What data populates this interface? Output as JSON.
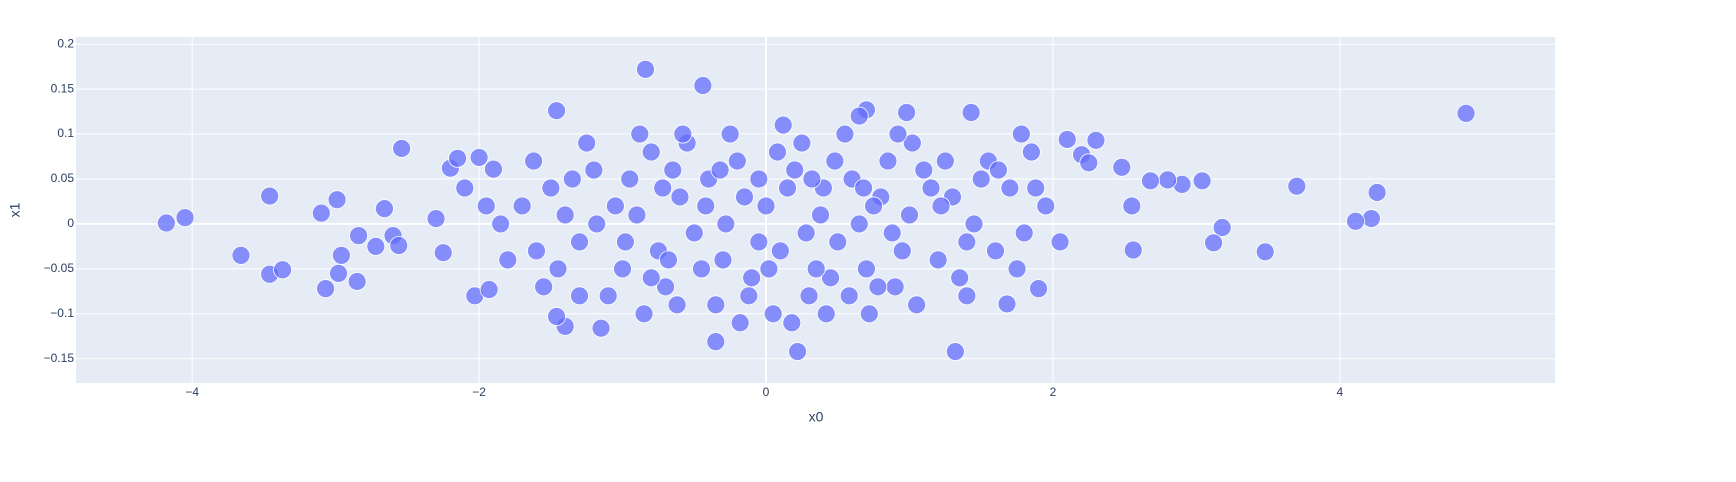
{
  "chart_data": {
    "type": "scatter",
    "x_label": "x0",
    "y_label": "x1",
    "color": "#636efa",
    "grid": true,
    "xlim": [
      -4.81,
      5.5
    ],
    "ylim": [
      -0.177,
      0.208
    ],
    "xticks": [
      {
        "value": -4,
        "label": "−4"
      },
      {
        "value": -2,
        "label": "−2"
      },
      0,
      2,
      4
    ],
    "yticks": [
      {
        "value": -0.15,
        "label": "−0.15"
      },
      {
        "value": -0.1,
        "label": "−0.1"
      },
      {
        "value": -0.05,
        "label": "−0.05"
      },
      0,
      0.05,
      0.1,
      0.15,
      0.2
    ],
    "x": [
      -4.18,
      -4.05,
      -3.66,
      -3.46,
      -3.46,
      -3.37,
      -3.1,
      -3.07,
      -2.99,
      -2.98,
      -2.96,
      -2.85,
      -2.84,
      -2.54,
      -2.66,
      -2.72,
      -2.6,
      -2.56,
      -2.3,
      -2.25,
      -2.2,
      -2.15,
      -2.0,
      -1.9,
      -2.03,
      -1.93,
      4.88,
      4.26,
      4.22,
      4.11,
      3.7,
      3.48,
      3.18,
      3.12,
      3.04,
      2.9,
      2.8,
      2.68,
      2.55,
      2.56,
      2.48,
      2.3,
      2.2,
      2.25,
      2.1,
      1.9,
      1.85,
      1.78,
      1.68,
      1.32,
      0.22,
      -0.35,
      -0.84,
      -0.44,
      -1.15,
      -1.4,
      -1.46,
      -1.46,
      1.43,
      0.98,
      0.7,
      0.65,
      -1.5,
      -1.3,
      -1.2,
      -1.0,
      -0.9,
      -0.8,
      -0.7,
      -0.6,
      -0.5,
      -0.4,
      -0.3,
      -0.2,
      -0.1,
      0.0,
      0.1,
      0.2,
      0.3,
      0.4,
      0.5,
      0.6,
      0.7,
      0.8,
      0.9,
      1.0,
      1.1,
      1.2,
      1.3,
      1.4,
      1.5,
      1.6,
      -1.6,
      -1.4,
      -1.1,
      -0.95,
      -0.75,
      -0.55,
      -0.35,
      -0.15,
      0.05,
      0.25,
      0.45,
      0.65,
      0.85,
      1.05,
      1.25,
      1.45,
      1.7,
      1.8,
      -1.7,
      -1.8,
      -1.25,
      -1.05,
      -0.85,
      -0.65,
      -0.45,
      -0.25,
      -0.05,
      0.15,
      0.35,
      0.55,
      0.75,
      0.95,
      1.15,
      1.35,
      1.55,
      1.75,
      -1.55,
      -1.35,
      -0.98,
      -0.62,
      -0.28,
      0.08,
      0.38,
      0.72,
      1.02,
      -0.12,
      -0.42,
      0.28,
      0.58,
      0.88,
      -0.72,
      -1.18,
      -0.88,
      0.12,
      -0.05,
      0.48,
      1.22,
      -1.45,
      -1.95,
      1.95,
      -0.18,
      0.18,
      0.02,
      -0.32,
      0.32,
      -0.68,
      0.68,
      1.62,
      -1.62,
      -2.1,
      2.05,
      1.88,
      -1.85,
      1.4,
      -1.3,
      0.92,
      -0.58,
      0.42,
      -0.8,
      0.78
    ],
    "values": [
      0.001,
      0.007,
      -0.035,
      0.031,
      -0.056,
      -0.051,
      0.012,
      -0.072,
      0.027,
      -0.055,
      -0.035,
      -0.064,
      -0.013,
      0.084,
      0.017,
      -0.025,
      -0.013,
      -0.024,
      0.006,
      -0.032,
      0.062,
      0.073,
      0.074,
      0.061,
      -0.08,
      -0.073,
      0.123,
      0.035,
      0.006,
      0.003,
      0.042,
      -0.031,
      -0.004,
      -0.021,
      0.048,
      0.044,
      0.049,
      0.048,
      0.02,
      -0.029,
      0.063,
      0.093,
      0.077,
      0.068,
      0.094,
      -0.072,
      0.08,
      0.1,
      -0.089,
      -0.142,
      -0.142,
      -0.131,
      0.172,
      0.154,
      -0.116,
      -0.114,
      -0.103,
      0.126,
      0.124,
      0.124,
      0.127,
      0.12,
      0.04,
      -0.02,
      0.06,
      -0.05,
      0.01,
      0.08,
      -0.07,
      0.03,
      -0.01,
      0.05,
      -0.04,
      0.07,
      -0.06,
      0.02,
      -0.03,
      0.06,
      -0.08,
      0.04,
      -0.02,
      0.05,
      -0.05,
      0.03,
      -0.07,
      0.01,
      0.06,
      -0.04,
      0.03,
      -0.02,
      0.05,
      -0.03,
      -0.03,
      0.01,
      -0.08,
      0.05,
      -0.03,
      0.09,
      -0.09,
      0.03,
      -0.1,
      0.09,
      -0.06,
      0.0,
      0.07,
      -0.09,
      0.07,
      0.0,
      0.04,
      -0.01,
      0.02,
      -0.04,
      0.09,
      0.02,
      -0.1,
      0.06,
      -0.05,
      0.1,
      -0.02,
      0.04,
      -0.05,
      0.1,
      0.02,
      -0.03,
      0.04,
      -0.06,
      0.07,
      -0.05,
      -0.07,
      0.05,
      -0.02,
      -0.09,
      0.0,
      0.08,
      0.01,
      -0.1,
      0.09,
      -0.08,
      0.02,
      -0.01,
      -0.08,
      -0.01,
      0.04,
      0.0,
      0.1,
      0.11,
      0.05,
      0.07,
      0.02,
      -0.05,
      0.02,
      0.02,
      -0.11,
      -0.11,
      -0.05,
      0.06,
      0.05,
      -0.04,
      0.04,
      0.06,
      0.07,
      0.04,
      -0.02,
      0.04,
      0.0,
      -0.08,
      -0.08,
      0.1,
      0.1,
      -0.1,
      -0.06,
      -0.07
    ]
  }
}
